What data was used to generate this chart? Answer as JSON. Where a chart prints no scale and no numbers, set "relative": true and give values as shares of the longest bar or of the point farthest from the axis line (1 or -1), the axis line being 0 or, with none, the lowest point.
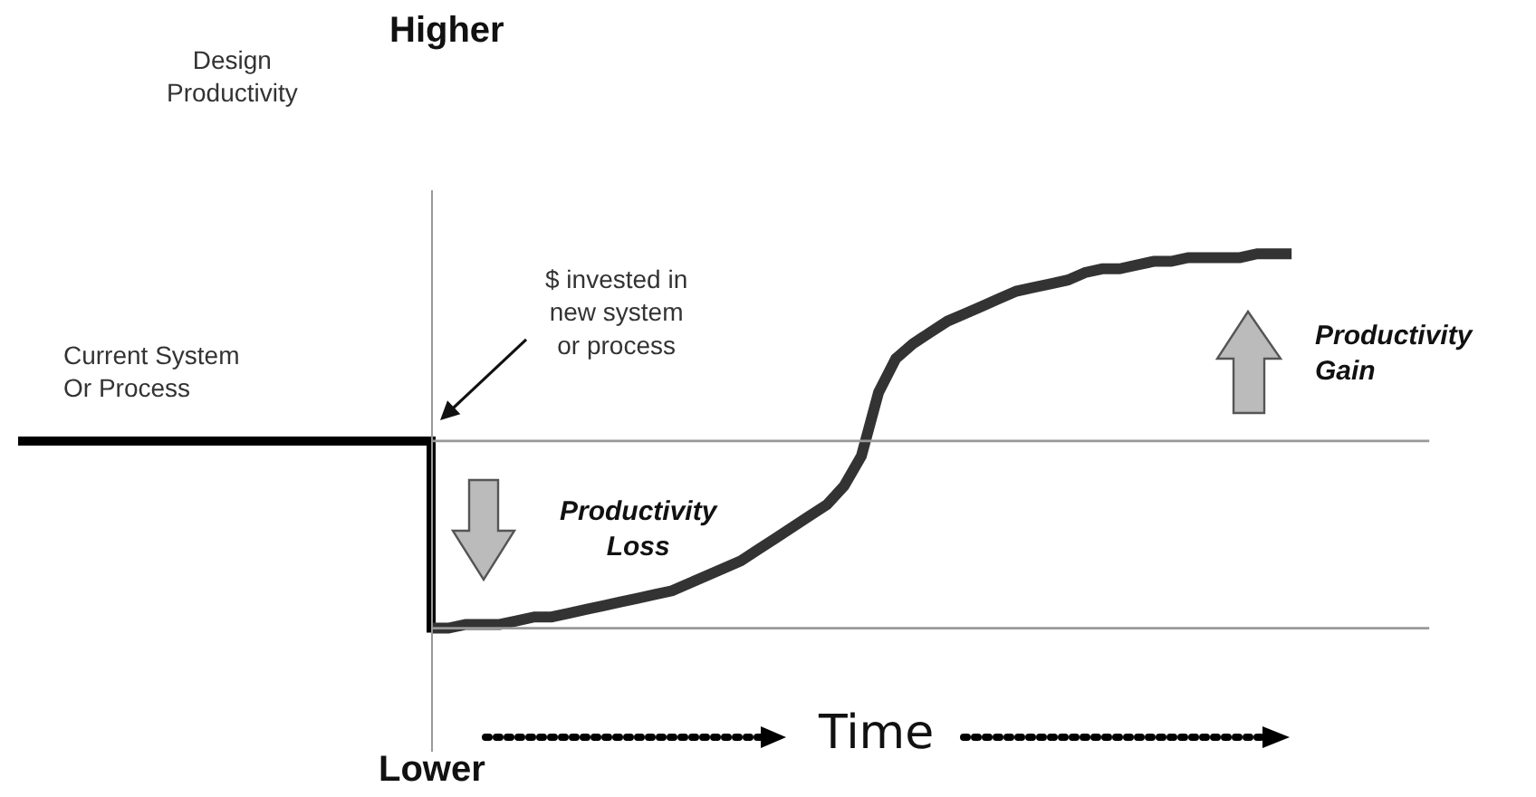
{
  "chart_data": {
    "type": "line",
    "relative": true,
    "xlabel": "Time",
    "annotations": [
      "Higher",
      "Lower",
      "$ invested in\nnew system\nor process",
      "Current System\nOr Process",
      "Productivity\nLoss",
      "Productivity\nGain",
      "Design\nProductivity"
    ],
    "categories": [
      null,
      null,
      null,
      null,
      null,
      null,
      null,
      null,
      null,
      null,
      null,
      null,
      null,
      null,
      null,
      null,
      null,
      null,
      null,
      null,
      null,
      null,
      null,
      null,
      null,
      null,
      null,
      null,
      null,
      null,
      null,
      null,
      null,
      null,
      null,
      null,
      null,
      null,
      null,
      null,
      null,
      null,
      null,
      null,
      null,
      null,
      null,
      null,
      null,
      null,
      null,
      null,
      null,
      null,
      null,
      null,
      null,
      null,
      null,
      null,
      null,
      null,
      null,
      null,
      null,
      null,
      null,
      null,
      null,
      null,
      null,
      null,
      null,
      null,
      null
    ],
    "series": [
      {
        "type": "step",
        "color": "#000000",
        "values": [
          0.5,
          0.5,
          0.5,
          0.5,
          0.5,
          0.5,
          0.5,
          0.5,
          0.5,
          0.5,
          0.5,
          0.5,
          0.5,
          0.5,
          0.5,
          0.5,
          0.5,
          0.5,
          0.5,
          0.5,
          0.5,
          0.5,
          0.5,
          0.5,
          0.5,
          0,
          null,
          null,
          null,
          null,
          null,
          null,
          null,
          null,
          null,
          null,
          null,
          null,
          null,
          null,
          null,
          null,
          null,
          null,
          null,
          null,
          null,
          null,
          null,
          null,
          null,
          null,
          null,
          null,
          null,
          null,
          null,
          null,
          null,
          null,
          null,
          null,
          null,
          null,
          null,
          null,
          null,
          null,
          null,
          null,
          null,
          null,
          null,
          null,
          null
        ]
      },
      {
        "type": "line",
        "color": "#333333",
        "values": [
          null,
          null,
          null,
          null,
          null,
          null,
          null,
          null,
          null,
          null,
          null,
          null,
          null,
          null,
          null,
          null,
          null,
          null,
          null,
          null,
          null,
          null,
          null,
          null,
          0,
          0,
          0.01,
          0.01,
          0.01,
          0.02,
          0.03,
          0.03,
          0.04,
          0.05,
          0.06,
          0.07,
          0.08,
          0.09,
          0.1,
          0.12,
          0.14,
          0.16,
          0.18,
          0.21,
          0.24,
          0.27,
          0.3,
          0.33,
          0.38,
          0.46,
          0.63,
          0.72,
          0.76,
          0.79,
          0.82,
          0.84,
          0.86,
          0.88,
          0.9,
          0.91,
          0.92,
          0.93,
          0.95,
          0.96,
          0.96,
          0.97,
          0.98,
          0.98,
          0.99,
          0.99,
          0.99,
          0.99,
          1,
          1,
          1
        ]
      }
    ],
    "ref_lines": [
      {
        "axis": "y",
        "value": 0.5,
        "color": "#999999"
      },
      {
        "axis": "y",
        "value": 0,
        "color": "#999999"
      }
    ],
    "grid": false,
    "marker": "none",
    "line_style": "solid"
  }
}
